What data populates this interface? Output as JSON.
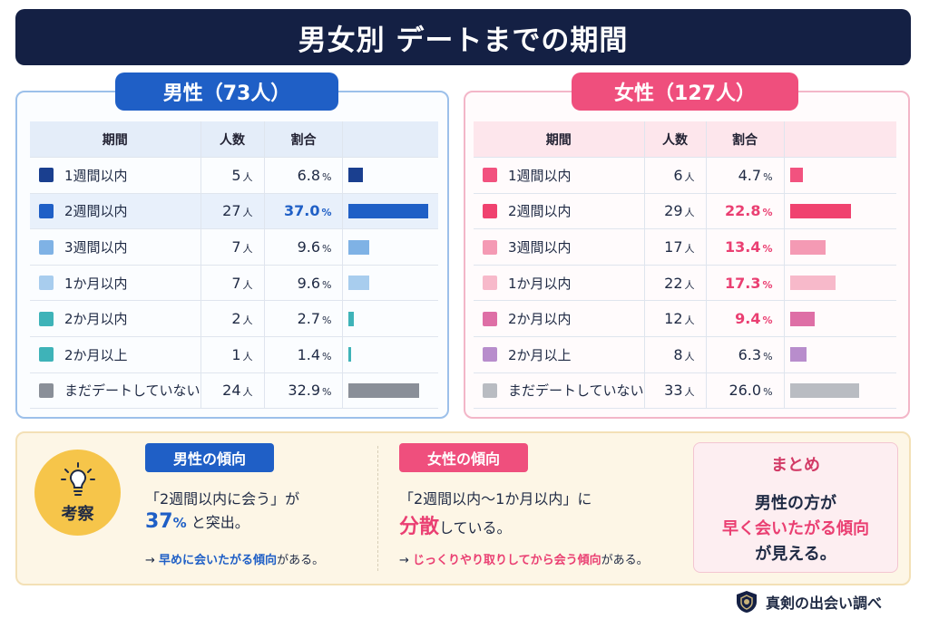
{
  "title": "男女別 デートまでの期間",
  "male": {
    "heading": "男性（73人）",
    "headers": [
      "期間",
      "人数",
      "割合",
      ""
    ],
    "rows": [
      {
        "label": "1週間以内",
        "count": "5",
        "pct": "6.8",
        "color": "#1a3f8f"
      },
      {
        "label": "2週間以内",
        "count": "27",
        "pct": "37.0",
        "color": "#1f5fc6"
      },
      {
        "label": "3週間以内",
        "count": "7",
        "pct": "9.6",
        "color": "#7fb2e5"
      },
      {
        "label": "1か月以内",
        "count": "7",
        "pct": "9.6",
        "color": "#a8cdee"
      },
      {
        "label": "2か月以内",
        "count": "2",
        "pct": "2.7",
        "color": "#3eb3b8"
      },
      {
        "label": "2か月以上",
        "count": "1",
        "pct": "1.4",
        "color": "#3eb3b8"
      },
      {
        "label": "まだデートしていない",
        "count": "24",
        "pct": "32.9",
        "color": "#8a8f98"
      }
    ]
  },
  "female": {
    "heading": "女性（127人）",
    "headers": [
      "期間",
      "人数",
      "割合",
      ""
    ],
    "rows": [
      {
        "label": "1週間以内",
        "count": "6",
        "pct": "4.7",
        "color": "#f2527f"
      },
      {
        "label": "2週間以内",
        "count": "29",
        "pct": "22.8",
        "color": "#f0426f"
      },
      {
        "label": "3週間以内",
        "count": "17",
        "pct": "13.4",
        "color": "#f49ab4"
      },
      {
        "label": "1か月以内",
        "count": "22",
        "pct": "17.3",
        "color": "#f7b9ca"
      },
      {
        "label": "2か月以内",
        "count": "12",
        "pct": "9.4",
        "color": "#de6fa6"
      },
      {
        "label": "2か月以上",
        "count": "8",
        "pct": "6.3",
        "color": "#b88dcc"
      },
      {
        "label": "まだデートしていない",
        "count": "33",
        "pct": "26.0",
        "color": "#b9bcc2"
      }
    ]
  },
  "units": {
    "person": "人",
    "percent": "%"
  },
  "insight": {
    "keyword": "考察",
    "male_tag": "男性の傾向",
    "male_line1": "「2週間以内に会う」が",
    "male_big": "37",
    "male_big_unit": "%",
    "male_line2_rest": "と突出。",
    "male_note_arrow": "→",
    "male_note_bold": "早めに会いたがる傾向",
    "male_note_rest": "がある。",
    "female_tag": "女性の傾向",
    "female_line1": "「2週間以内〜1か月以内」に",
    "female_big": "分散",
    "female_line2_rest": "している。",
    "female_note_arrow": "→",
    "female_note_bold": "じっくりやり取りしてから会う傾向",
    "female_note_rest": "がある。",
    "summary_title": "まとめ",
    "summary_line1": "男性の方が",
    "summary_line2": "早く会いたがる傾向",
    "summary_line3": "が見える。"
  },
  "brand": {
    "name": "真剣の出会い調べ",
    "icon": "shield-logo-icon"
  },
  "chart_data": [
    {
      "type": "bar",
      "categories": [
        "1週間以内",
        "2週間以内",
        "3週間以内",
        "1か月以内",
        "2か月以内",
        "2か月以上",
        "まだデートしていない"
      ],
      "series": [
        {
          "name": "男性（73人）",
          "values": [
            6.8,
            37.0,
            9.6,
            9.6,
            2.7,
            1.4,
            32.9
          ]
        }
      ],
      "counts": [
        5,
        27,
        7,
        7,
        2,
        1,
        24
      ],
      "title": "男性（73人）",
      "xlabel": "",
      "ylabel": "",
      "ylim": [
        0,
        37.0
      ]
    },
    {
      "type": "bar",
      "categories": [
        "1週間以内",
        "2週間以内",
        "3週間以内",
        "1か月以内",
        "2か月以内",
        "2か月以上",
        "まだデートしていない"
      ],
      "series": [
        {
          "name": "女性（127人）",
          "values": [
            4.7,
            22.8,
            13.4,
            17.3,
            9.4,
            6.3,
            26.0
          ]
        }
      ],
      "counts": [
        6,
        29,
        17,
        22,
        12,
        8,
        33
      ],
      "title": "女性（127人）",
      "xlabel": "",
      "ylabel": "",
      "ylim": [
        0,
        37.0
      ]
    }
  ]
}
